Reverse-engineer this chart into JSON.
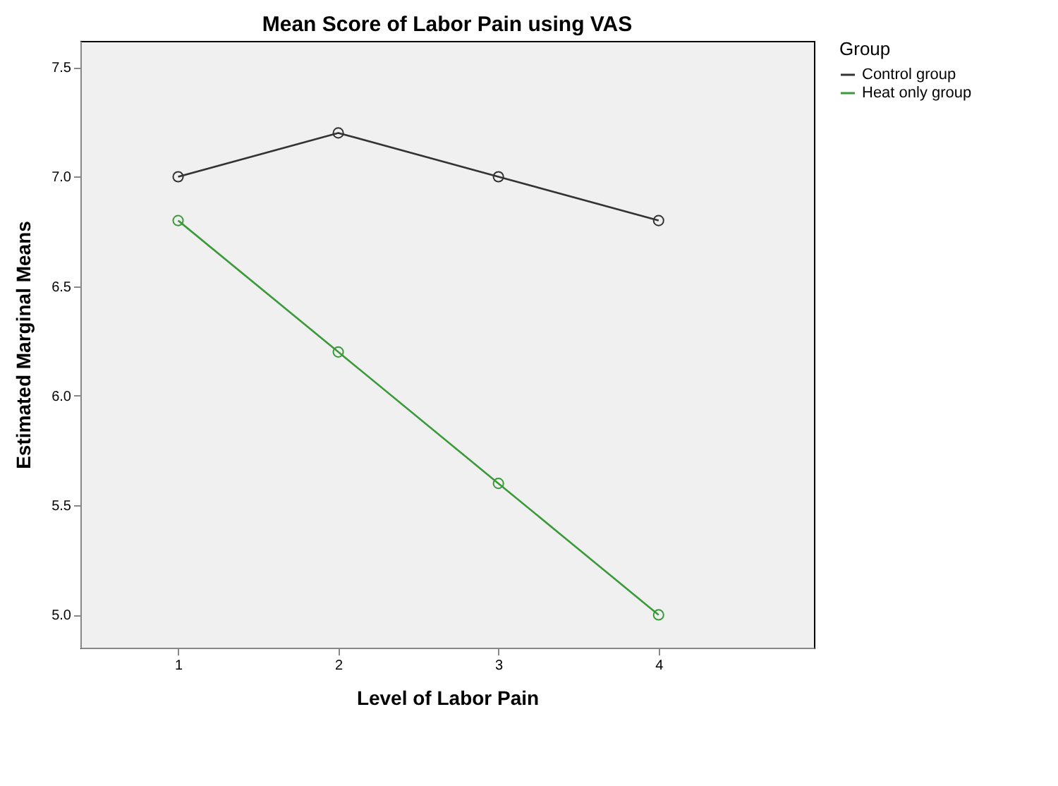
{
  "chart_data": {
    "type": "line",
    "title": "Mean Score of Labor Pain using VAS",
    "xlabel": "Level of Labor Pain",
    "ylabel": "Estimated Marginal Means",
    "legend_title": "Group",
    "x": [
      1,
      2,
      3,
      4
    ],
    "series": [
      {
        "name": "Control group",
        "color": "#333333",
        "values": [
          7.0,
          7.2,
          7.0,
          6.8
        ]
      },
      {
        "name": "Heat only group",
        "color": "#3a9a3a",
        "values": [
          6.8,
          6.2,
          5.6,
          5.0
        ]
      }
    ],
    "xlim": [
      0.39,
      4.97
    ],
    "xticks": [
      1,
      2,
      3,
      4
    ],
    "ylim": [
      4.85,
      7.62
    ],
    "yticks": [
      {
        "value": 5,
        "label": "5.0"
      },
      5.5,
      {
        "value": 6,
        "label": "6.0"
      },
      6.5,
      {
        "value": 7,
        "label": "7.0"
      },
      7.5
    ],
    "marker": "circle",
    "line_style": "solid",
    "grid": false,
    "legend": "top right"
  }
}
